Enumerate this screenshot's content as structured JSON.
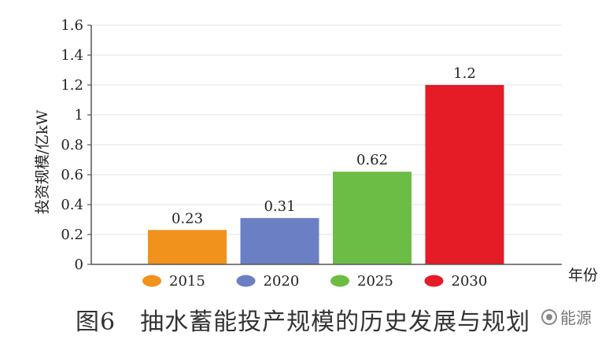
{
  "chart_data": {
    "type": "bar",
    "categories": [
      "2015",
      "2020",
      "2025",
      "2030"
    ],
    "values": [
      0.23,
      0.31,
      0.62,
      1.2
    ],
    "data_labels": [
      "0.23",
      "0.31",
      "0.62",
      "1.2"
    ],
    "colors": [
      "#f0921c",
      "#6b80c4",
      "#6cbd45",
      "#e51b25"
    ],
    "title": "",
    "xlabel": "年份",
    "ylabel": "投资规模/亿kW",
    "ylim": [
      0,
      1.6
    ],
    "yticks": [
      "0",
      "0.2",
      "0.4",
      "0.6",
      "0.8",
      "1",
      "1.2",
      "1.4",
      "1.6"
    ],
    "ytick_values": [
      0,
      0.2,
      0.4,
      0.6,
      0.8,
      1,
      1.2,
      1.4,
      1.6
    ],
    "grid": true,
    "legend": {
      "placement": "bottom",
      "entries": [
        "2015",
        "2020",
        "2025",
        "2030"
      ]
    }
  },
  "caption": "图6　抽水蓄能投产规模的历史发展与规划",
  "watermark": "能源"
}
